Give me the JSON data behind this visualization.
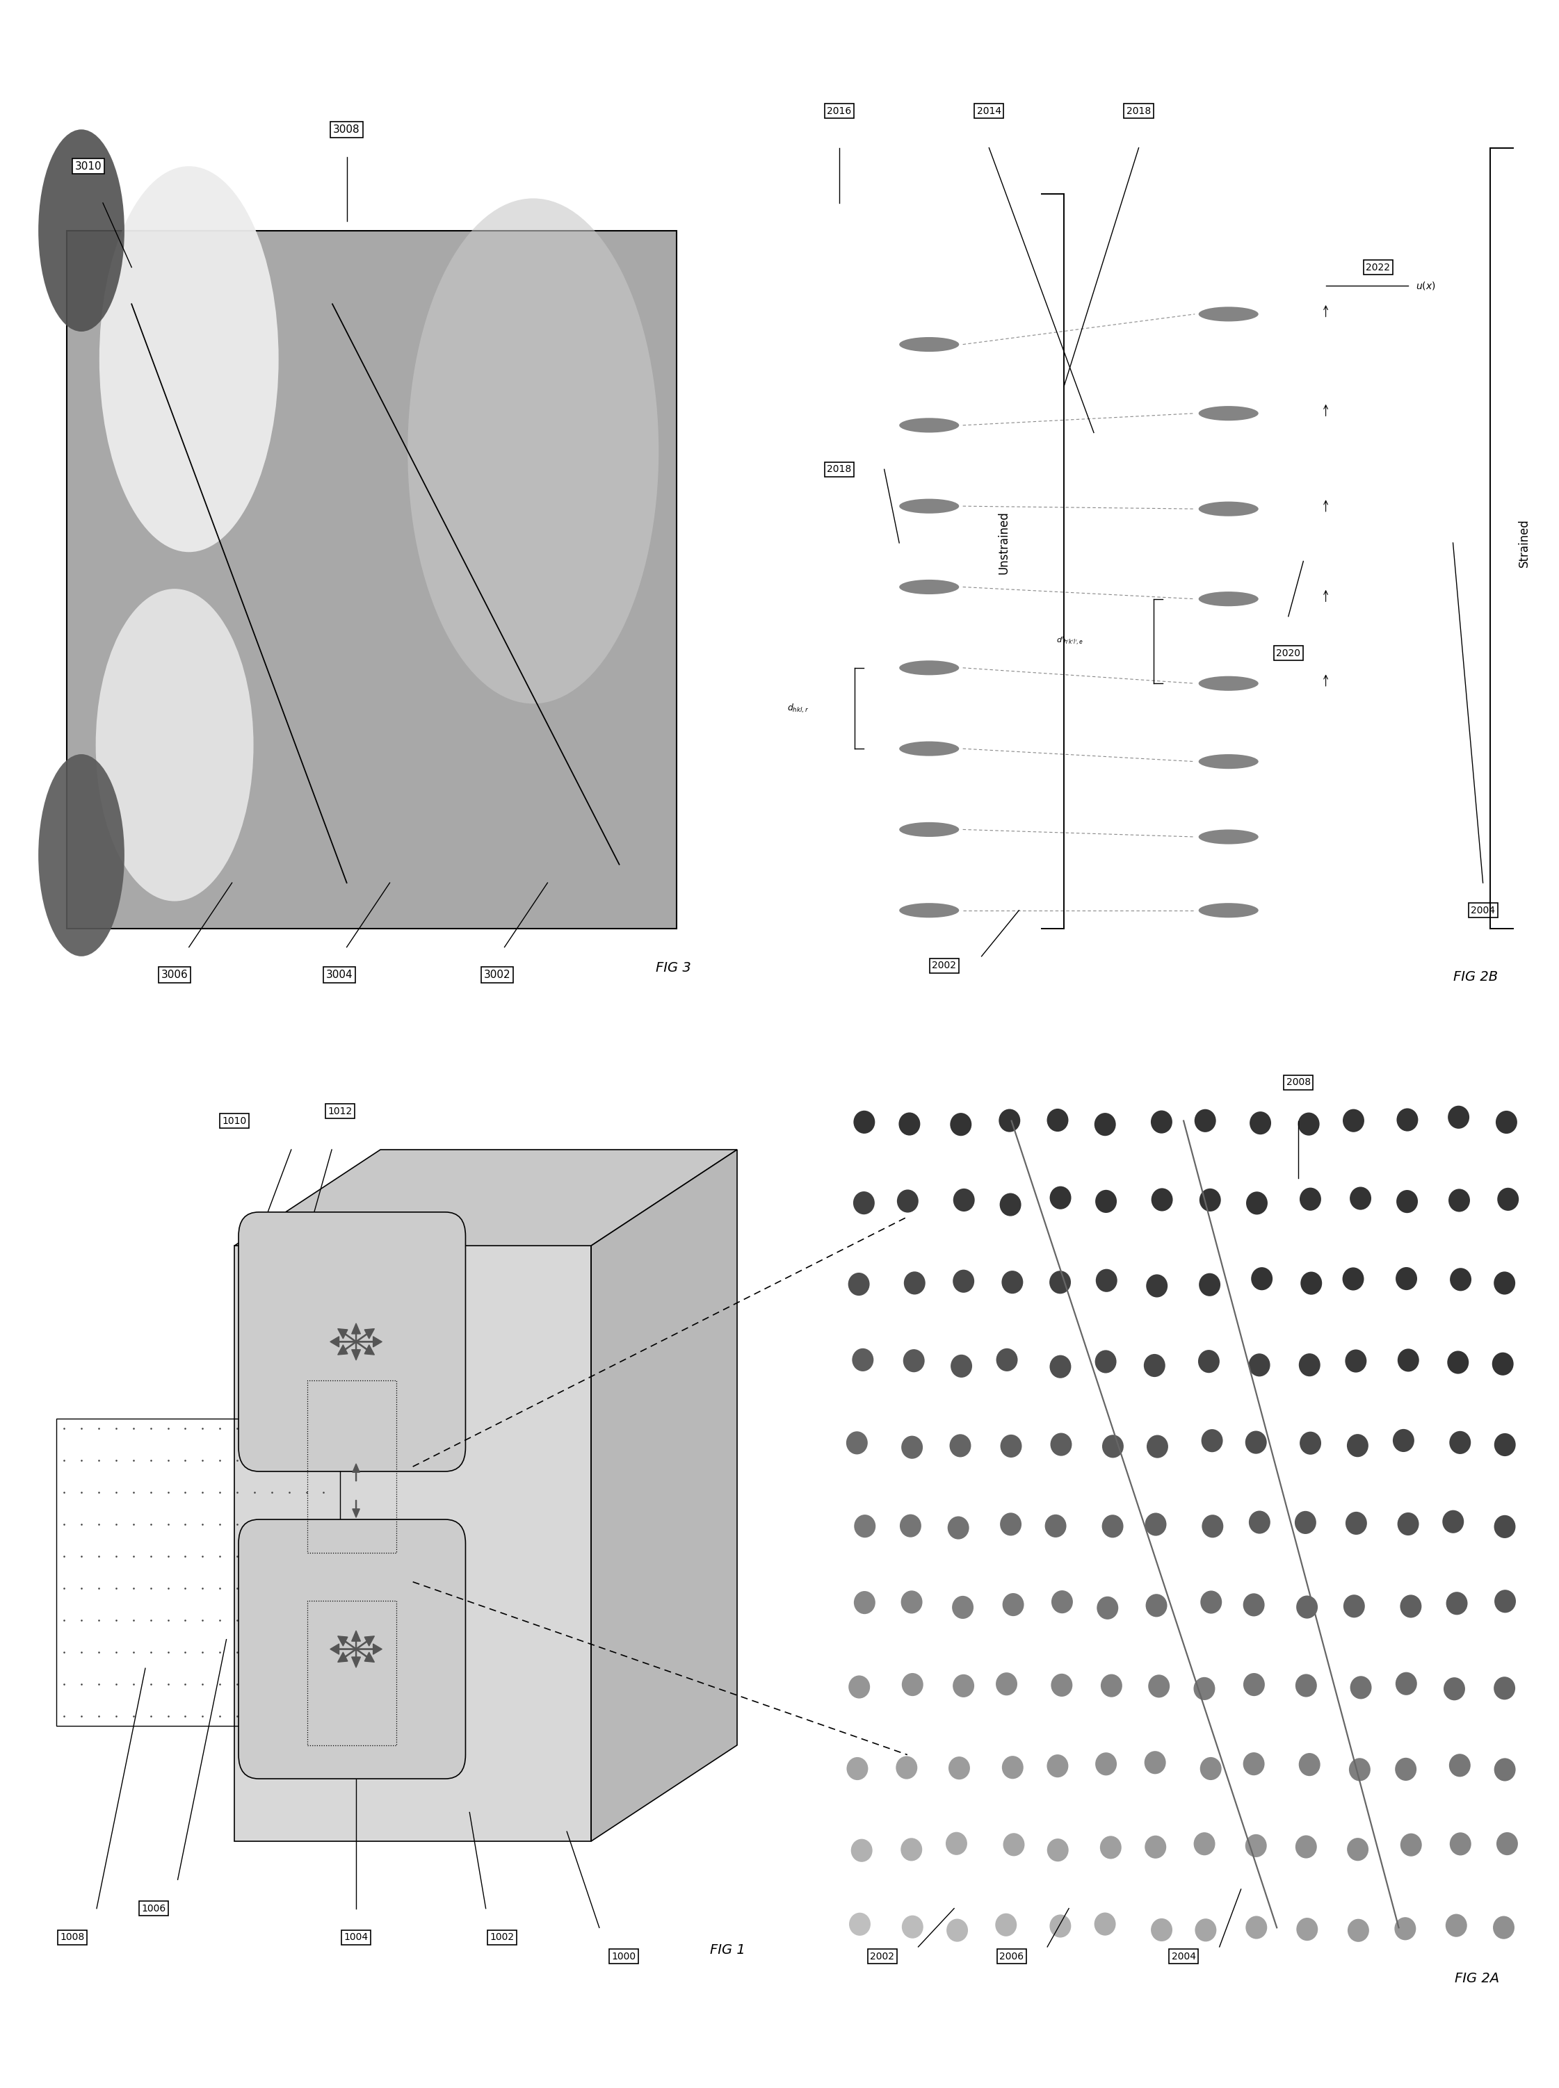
{
  "bg_color": "#ffffff",
  "fig_width": 22.42,
  "fig_height": 30.04,
  "labels": {
    "fig1": "FIG 1",
    "fig2a": "FIG 2A",
    "fig2b": "FIG 2B",
    "fig3": "FIG 3"
  },
  "ref_nums_fig3": [
    "3008",
    "3010",
    "3006",
    "3004",
    "3002"
  ],
  "ref_nums_fig1": [
    "1010",
    "1012",
    "1008",
    "1006",
    "1004",
    "1002",
    "1000"
  ],
  "ref_nums_fig2a": [
    "2008",
    "2006",
    "2004",
    "2002"
  ],
  "ref_nums_fig2b": [
    "2016",
    "2014",
    "2018",
    "2018",
    "2022",
    "2020",
    "2004",
    "2002"
  ]
}
